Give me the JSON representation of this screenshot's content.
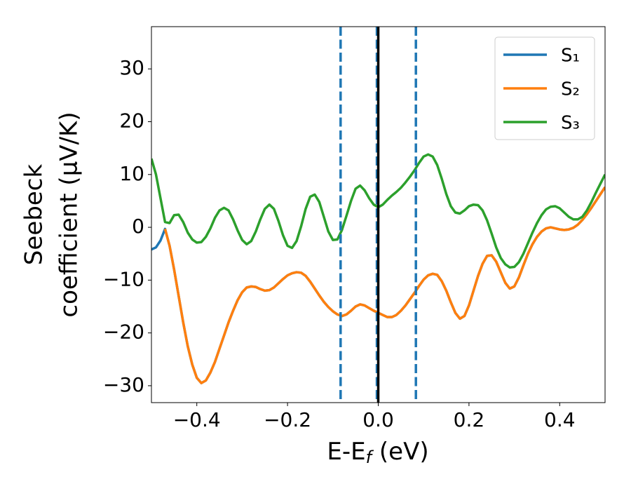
{
  "chart_data": {
    "type": "line",
    "xlabel": [
      "E-E",
      "f",
      " (eV)"
    ],
    "ylabel": [
      "Seebeck",
      "coefficient  (μV/K)"
    ],
    "x": [
      -0.5,
      -0.49,
      -0.48,
      -0.47,
      -0.46,
      -0.45,
      -0.44,
      -0.43,
      -0.42,
      -0.41,
      -0.4,
      -0.39,
      -0.38,
      -0.37,
      -0.36,
      -0.35,
      -0.34,
      -0.33,
      -0.32,
      -0.31,
      -0.3,
      -0.29,
      -0.28,
      -0.27,
      -0.26,
      -0.25,
      -0.24,
      -0.23,
      -0.22,
      -0.21,
      -0.2,
      -0.19,
      -0.18,
      -0.17,
      -0.16,
      -0.15,
      -0.14,
      -0.13,
      -0.12,
      -0.11,
      -0.1,
      -0.09,
      -0.08,
      -0.07,
      -0.06,
      -0.05,
      -0.04,
      -0.03,
      -0.02,
      -0.01,
      0,
      0.01,
      0.02,
      0.03,
      0.04,
      0.05,
      0.06,
      0.07,
      0.08,
      0.09,
      0.1,
      0.11,
      0.12,
      0.13,
      0.14,
      0.15,
      0.16,
      0.17,
      0.18,
      0.19,
      0.2,
      0.21,
      0.22,
      0.23,
      0.24,
      0.25,
      0.26,
      0.27,
      0.28,
      0.29,
      0.3,
      0.31,
      0.32,
      0.33,
      0.34,
      0.35,
      0.36,
      0.37,
      0.38,
      0.39,
      0.4,
      0.41,
      0.42,
      0.43,
      0.44,
      0.45,
      0.46,
      0.47,
      0.48,
      0.49,
      0.5
    ],
    "series": [
      {
        "name": "S₁",
        "color": "#1f77b4",
        "values": [
          -4.2,
          -3.8,
          -2.5,
          -0.3,
          -3.5,
          -8,
          -13,
          -18,
          -22.5,
          -26,
          -28.5,
          -29.5,
          -29,
          -27.5,
          -25.5,
          -23,
          -20.5,
          -18,
          -15.8,
          -13.8,
          -12.3,
          -11.4,
          -11.2,
          -11.3,
          -11.7,
          -12,
          -11.9,
          -11.4,
          -10.6,
          -9.8,
          -9.1,
          -8.7,
          -8.5,
          -8.6,
          -9.2,
          -10.3,
          -11.6,
          -12.9,
          -14.1,
          -15.1,
          -15.9,
          -16.5,
          -16.8,
          -16.5,
          -15.8,
          -15,
          -14.6,
          -14.8,
          -15.3,
          -15.8,
          -16.2,
          -16.6,
          -17,
          -17,
          -16.6,
          -15.8,
          -14.8,
          -13.6,
          -12.4,
          -11.1,
          -9.9,
          -9.1,
          -8.8,
          -9,
          -10.2,
          -12,
          -14.2,
          -16.2,
          -17.3,
          -16.8,
          -14.8,
          -12,
          -9.2,
          -6.9,
          -5.4,
          -5.3,
          -6.5,
          -8.5,
          -10.5,
          -11.6,
          -11.2,
          -9.5,
          -7.2,
          -5,
          -3.2,
          -1.8,
          -0.8,
          -0.2,
          0,
          -0.2,
          -0.4,
          -0.5,
          -0.4,
          -0.1,
          0.5,
          1.4,
          2.5,
          3.7,
          5,
          6.3,
          7.6
        ]
      },
      {
        "name": "S₂",
        "color": "#ff7f0e",
        "values": [
          null,
          null,
          null,
          -0.3,
          -3.5,
          -8,
          -13,
          -18,
          -22.5,
          -26,
          -28.5,
          -29.5,
          -29,
          -27.5,
          -25.5,
          -23,
          -20.5,
          -18,
          -15.8,
          -13.8,
          -12.3,
          -11.4,
          -11.2,
          -11.3,
          -11.7,
          -12,
          -11.9,
          -11.4,
          -10.6,
          -9.8,
          -9.1,
          -8.7,
          -8.5,
          -8.6,
          -9.2,
          -10.3,
          -11.6,
          -12.9,
          -14.1,
          -15.1,
          -15.9,
          -16.5,
          -16.8,
          -16.5,
          -15.8,
          -15,
          -14.6,
          -14.8,
          -15.3,
          -15.8,
          -16.2,
          -16.6,
          -17,
          -17,
          -16.6,
          -15.8,
          -14.8,
          -13.6,
          -12.4,
          -11.1,
          -9.9,
          -9.1,
          -8.8,
          -9,
          -10.2,
          -12,
          -14.2,
          -16.2,
          -17.3,
          -16.8,
          -14.8,
          -12,
          -9.2,
          -6.9,
          -5.4,
          -5.3,
          -6.5,
          -8.5,
          -10.5,
          -11.6,
          -11.2,
          -9.5,
          -7.2,
          -5,
          -3.2,
          -1.8,
          -0.8,
          -0.2,
          0,
          -0.2,
          -0.4,
          -0.5,
          -0.4,
          -0.1,
          0.5,
          1.4,
          2.5,
          3.7,
          5,
          6.3,
          7.6
        ]
      },
      {
        "name": "S₃",
        "color": "#2ca02c",
        "values": [
          13,
          10,
          5.5,
          1,
          0.8,
          2.3,
          2.4,
          1,
          -1,
          -2.3,
          -2.9,
          -2.8,
          -1.8,
          -0.2,
          1.8,
          3.2,
          3.7,
          3.2,
          1.5,
          -0.6,
          -2.4,
          -3.2,
          -2.6,
          -0.8,
          1.5,
          3.5,
          4.3,
          3.5,
          1.2,
          -1.5,
          -3.5,
          -3.9,
          -2.6,
          0.2,
          3.5,
          5.8,
          6.2,
          4.8,
          2,
          -0.8,
          -2.4,
          -2.3,
          -0.5,
          2.2,
          5,
          7.3,
          7.9,
          7,
          5.5,
          4.3,
          3.8,
          4.3,
          5.2,
          6,
          6.7,
          7.5,
          8.5,
          9.6,
          10.8,
          12.2,
          13.4,
          13.8,
          13.4,
          11.8,
          9.2,
          6.3,
          4,
          2.8,
          2.6,
          3.2,
          4,
          4.3,
          4.2,
          3.2,
          1.3,
          -1.2,
          -3.8,
          -5.8,
          -7,
          -7.6,
          -7.5,
          -6.6,
          -5,
          -3,
          -1,
          0.8,
          2.3,
          3.4,
          3.9,
          4,
          3.6,
          2.8,
          2,
          1.5,
          1.5,
          2,
          3.2,
          4.8,
          6.6,
          8.3,
          10
        ]
      }
    ],
    "vlines": [
      {
        "x": -0.083,
        "color": "#1f77b4",
        "style": "dashed"
      },
      {
        "x": -0.003,
        "color": "#1f77b4",
        "style": "dashed"
      },
      {
        "x": 0.083,
        "color": "#1f77b4",
        "style": "dashed"
      },
      {
        "x": 0,
        "color": "#000000",
        "style": "solid"
      }
    ],
    "xlim": [
      -0.5,
      0.5
    ],
    "xticks": [
      {
        "value": -0.4,
        "label": "−0.4"
      },
      {
        "value": -0.2,
        "label": "−0.2"
      },
      {
        "value": 0,
        "label": "0.0"
      },
      0.2,
      0.4
    ],
    "ylim": [
      -33.2,
      38
    ],
    "yticks": [
      {
        "value": -30,
        "label": "−30"
      },
      {
        "value": -20,
        "label": "−20"
      },
      {
        "value": -10,
        "label": "−10"
      },
      0,
      10,
      20,
      30
    ],
    "grid": false,
    "legend": "upper right"
  }
}
